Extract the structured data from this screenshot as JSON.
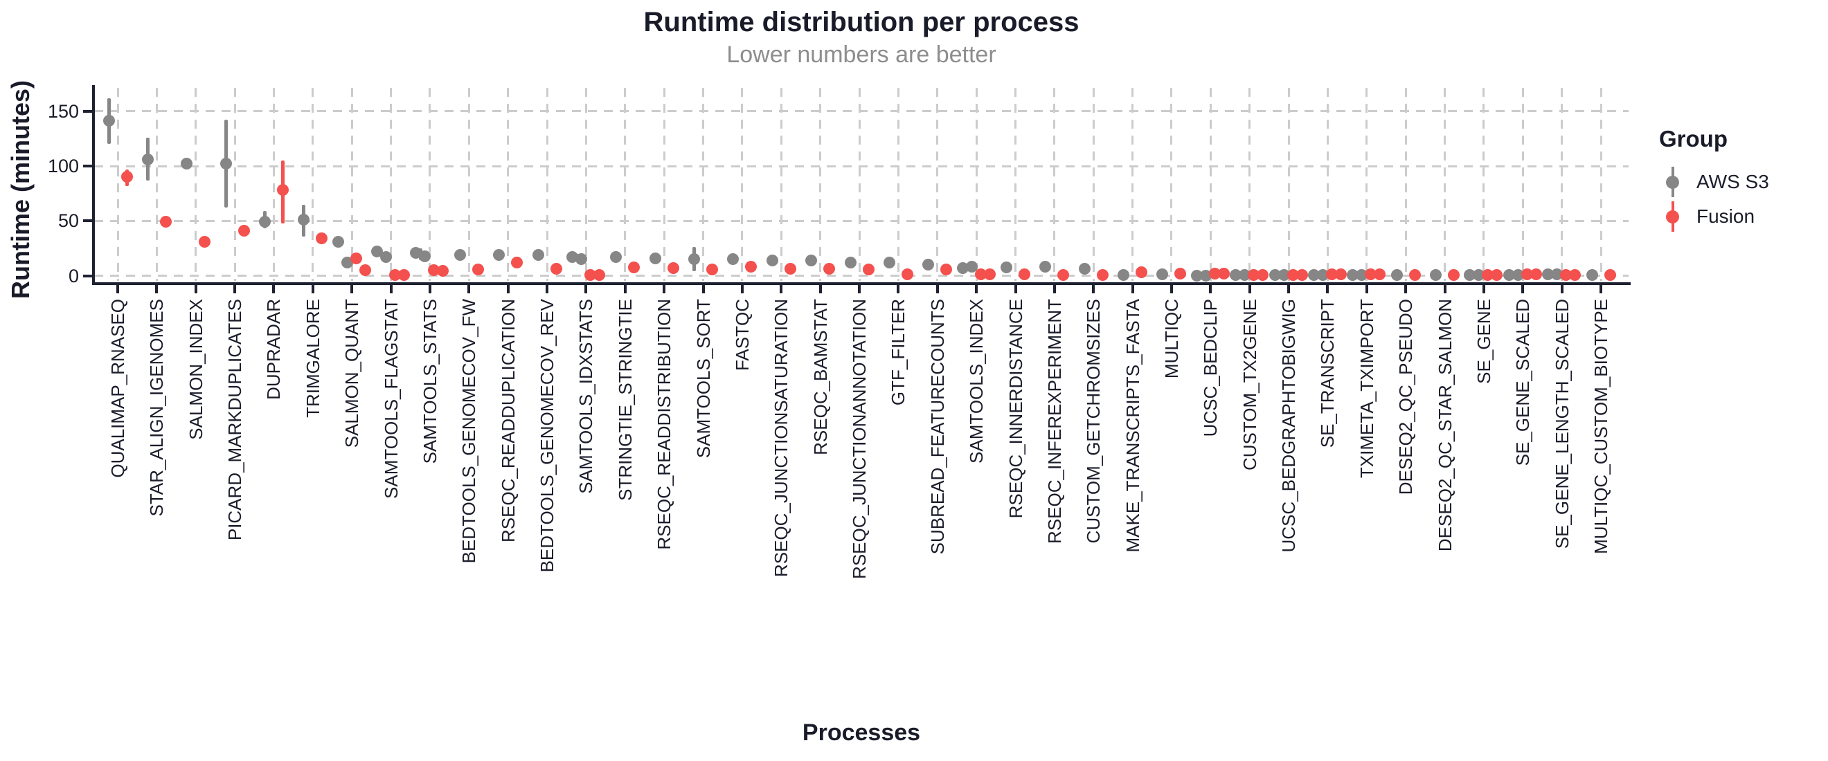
{
  "page": {
    "background": "#ffffff"
  },
  "colors": {
    "aws": "#868686",
    "fusion": "#f4504d",
    "grid": "#cccccc",
    "axis": "#1e2130",
    "title_text": "#191b29",
    "subtitle_text": "#8d8d8d"
  },
  "chart_data": {
    "type": "scatter",
    "variant": "dodged-pointrange",
    "title": "Runtime distribution per process",
    "subtitle": "Lower numbers are better",
    "xlabel": "Processes",
    "ylabel": "Runtime (minutes)",
    "ylim": [
      0,
      170
    ],
    "yticks": [
      0,
      50,
      100,
      150
    ],
    "grid": "dashed",
    "legend": {
      "title": "Group",
      "position": "right",
      "entries": [
        {
          "label": "AWS S3",
          "color": "#868686"
        },
        {
          "label": "Fusion",
          "color": "#f4504d"
        }
      ]
    },
    "categories": [
      "QUALIMAP_RNASEQ",
      "STAR_ALIGN_IGENOMES",
      "SALMON_INDEX",
      "PICARD_MARKDUPLICATES",
      "DUPRADAR",
      "TRIMGALORE",
      "SALMON_QUANT",
      "SAMTOOLS_FLAGSTAT",
      "SAMTOOLS_STATS",
      "BEDTOOLS_GENOMECOV_FW",
      "RSEQC_READDUPLICATION",
      "BEDTOOLS_GENOMECOV_REV",
      "SAMTOOLS_IDXSTATS",
      "STRINGTIE_STRINGTIE",
      "RSEQC_READDISTRIBUTION",
      "SAMTOOLS_SORT",
      "FASTQC",
      "RSEQC_JUNCTIONSATURATION",
      "RSEQC_BAMSTAT",
      "RSEQC_JUNCTIONANNOTATION",
      "GTF_FILTER",
      "SUBREAD_FEATURECOUNTS",
      "SAMTOOLS_INDEX",
      "RSEQC_INNERDISTANCE",
      "RSEQC_INFEREXPERIMENT",
      "CUSTOM_GETCHROMSIZES",
      "MAKE_TRANSCRIPTS_FASTA",
      "MULTIQC",
      "UCSC_BEDCLIP",
      "CUSTOM_TX2GENE",
      "UCSC_BEDGRAPHTOBIGWIG",
      "SE_TRANSCRIPT",
      "TXIMETA_TXIMPORT",
      "DESEQ2_QC_PSEUDO",
      "DESEQ2_QC_STAR_SALMON",
      "SE_GENE",
      "SE_GENE_SCALED",
      "SE_GENE_LENGTH_SCALED",
      "MULTIQC_CUSTOM_BIOTYPE"
    ],
    "series": [
      {
        "name": "AWS S3",
        "color": "#868686",
        "data": [
          {
            "v": [
              141
            ],
            "r": [
              120,
              162
            ]
          },
          {
            "v": [
              106
            ],
            "r": [
              87,
              126
            ]
          },
          {
            "v": [
              102
            ]
          },
          {
            "v": [
              102
            ],
            "r": [
              62,
              142
            ]
          },
          {
            "v": [
              49
            ],
            "r": [
              43,
              59
            ]
          },
          {
            "v": [
              51
            ],
            "r": [
              36,
              65
            ]
          },
          {
            "v": [
              31,
              12
            ]
          },
          {
            "v": [
              22,
              17
            ]
          },
          {
            "v": [
              21,
              18
            ],
            "r": [
              14,
              25
            ]
          },
          {
            "v": [
              19
            ]
          },
          {
            "v": [
              19
            ]
          },
          {
            "v": [
              19
            ]
          },
          {
            "v": [
              17,
              15
            ],
            "r": [
              13,
              20
            ]
          },
          {
            "v": [
              17
            ]
          },
          {
            "v": [
              16
            ]
          },
          {
            "v": [
              15
            ],
            "r": [
              4,
              26
            ]
          },
          {
            "v": [
              15
            ]
          },
          {
            "v": [
              14
            ]
          },
          {
            "v": [
              14
            ]
          },
          {
            "v": [
              12
            ]
          },
          {
            "v": [
              12
            ]
          },
          {
            "v": [
              10
            ]
          },
          {
            "v": [
              7,
              8.5
            ]
          },
          {
            "v": [
              7.6
            ]
          },
          {
            "v": [
              8.4
            ]
          },
          {
            "v": [
              6.3
            ]
          },
          {
            "v": [
              0.6
            ]
          },
          {
            "v": [
              1.3
            ]
          },
          {
            "v": [
              0.3,
              0.3
            ]
          },
          {
            "v": [
              0.6,
              0.6
            ]
          },
          {
            "v": [
              0.6,
              0.6
            ]
          },
          {
            "v": [
              0.6,
              0.6
            ]
          },
          {
            "v": [
              0.6,
              0.6
            ]
          },
          {
            "v": [
              0.6
            ]
          },
          {
            "v": [
              0.6
            ]
          },
          {
            "v": [
              1,
              1
            ]
          },
          {
            "v": [
              1,
              1
            ]
          },
          {
            "v": [
              1.3,
              1.3
            ]
          },
          {
            "v": [
              0.6
            ]
          }
        ]
      },
      {
        "name": "Fusion",
        "color": "#f4504d",
        "data": [
          {
            "v": [
              90
            ],
            "r": [
              82,
              97
            ]
          },
          {
            "v": [
              49
            ]
          },
          {
            "v": [
              31
            ]
          },
          {
            "v": [
              41
            ]
          },
          {
            "v": [
              78
            ],
            "r": [
              48,
              105
            ]
          },
          {
            "v": [
              34
            ]
          },
          {
            "v": [
              16,
              5
            ]
          },
          {
            "v": [
              1,
              1
            ]
          },
          {
            "v": [
              5,
              4.5
            ]
          },
          {
            "v": [
              6
            ]
          },
          {
            "v": [
              12
            ]
          },
          {
            "v": [
              6.3
            ]
          },
          {
            "v": [
              1,
              0.5
            ]
          },
          {
            "v": [
              7.4
            ]
          },
          {
            "v": [
              7
            ]
          },
          {
            "v": [
              6
            ]
          },
          {
            "v": [
              8.6
            ]
          },
          {
            "v": [
              6.3
            ]
          },
          {
            "v": [
              6.3
            ]
          },
          {
            "v": [
              6
            ]
          },
          {
            "v": [
              1.7
            ]
          },
          {
            "v": [
              5.5
            ]
          },
          {
            "v": [
              1.3,
              1.3
            ]
          },
          {
            "v": [
              1.7
            ]
          },
          {
            "v": [
              0.6
            ]
          },
          {
            "v": [
              0.6
            ]
          },
          {
            "v": [
              3.2
            ]
          },
          {
            "v": [
              2.1
            ]
          },
          {
            "v": [
              2,
              2
            ]
          },
          {
            "v": [
              0.6,
              0.6
            ]
          },
          {
            "v": [
              0.6,
              0.6
            ]
          },
          {
            "v": [
              1.7,
              1.7
            ]
          },
          {
            "v": [
              1.3,
              1.3
            ]
          },
          {
            "v": [
              0.6
            ]
          },
          {
            "v": [
              0.6
            ]
          },
          {
            "v": [
              1,
              1
            ]
          },
          {
            "v": [
              1.3,
              1.3
            ]
          },
          {
            "v": [
              1,
              1
            ]
          },
          {
            "v": [
              0.6
            ]
          }
        ]
      }
    ]
  }
}
